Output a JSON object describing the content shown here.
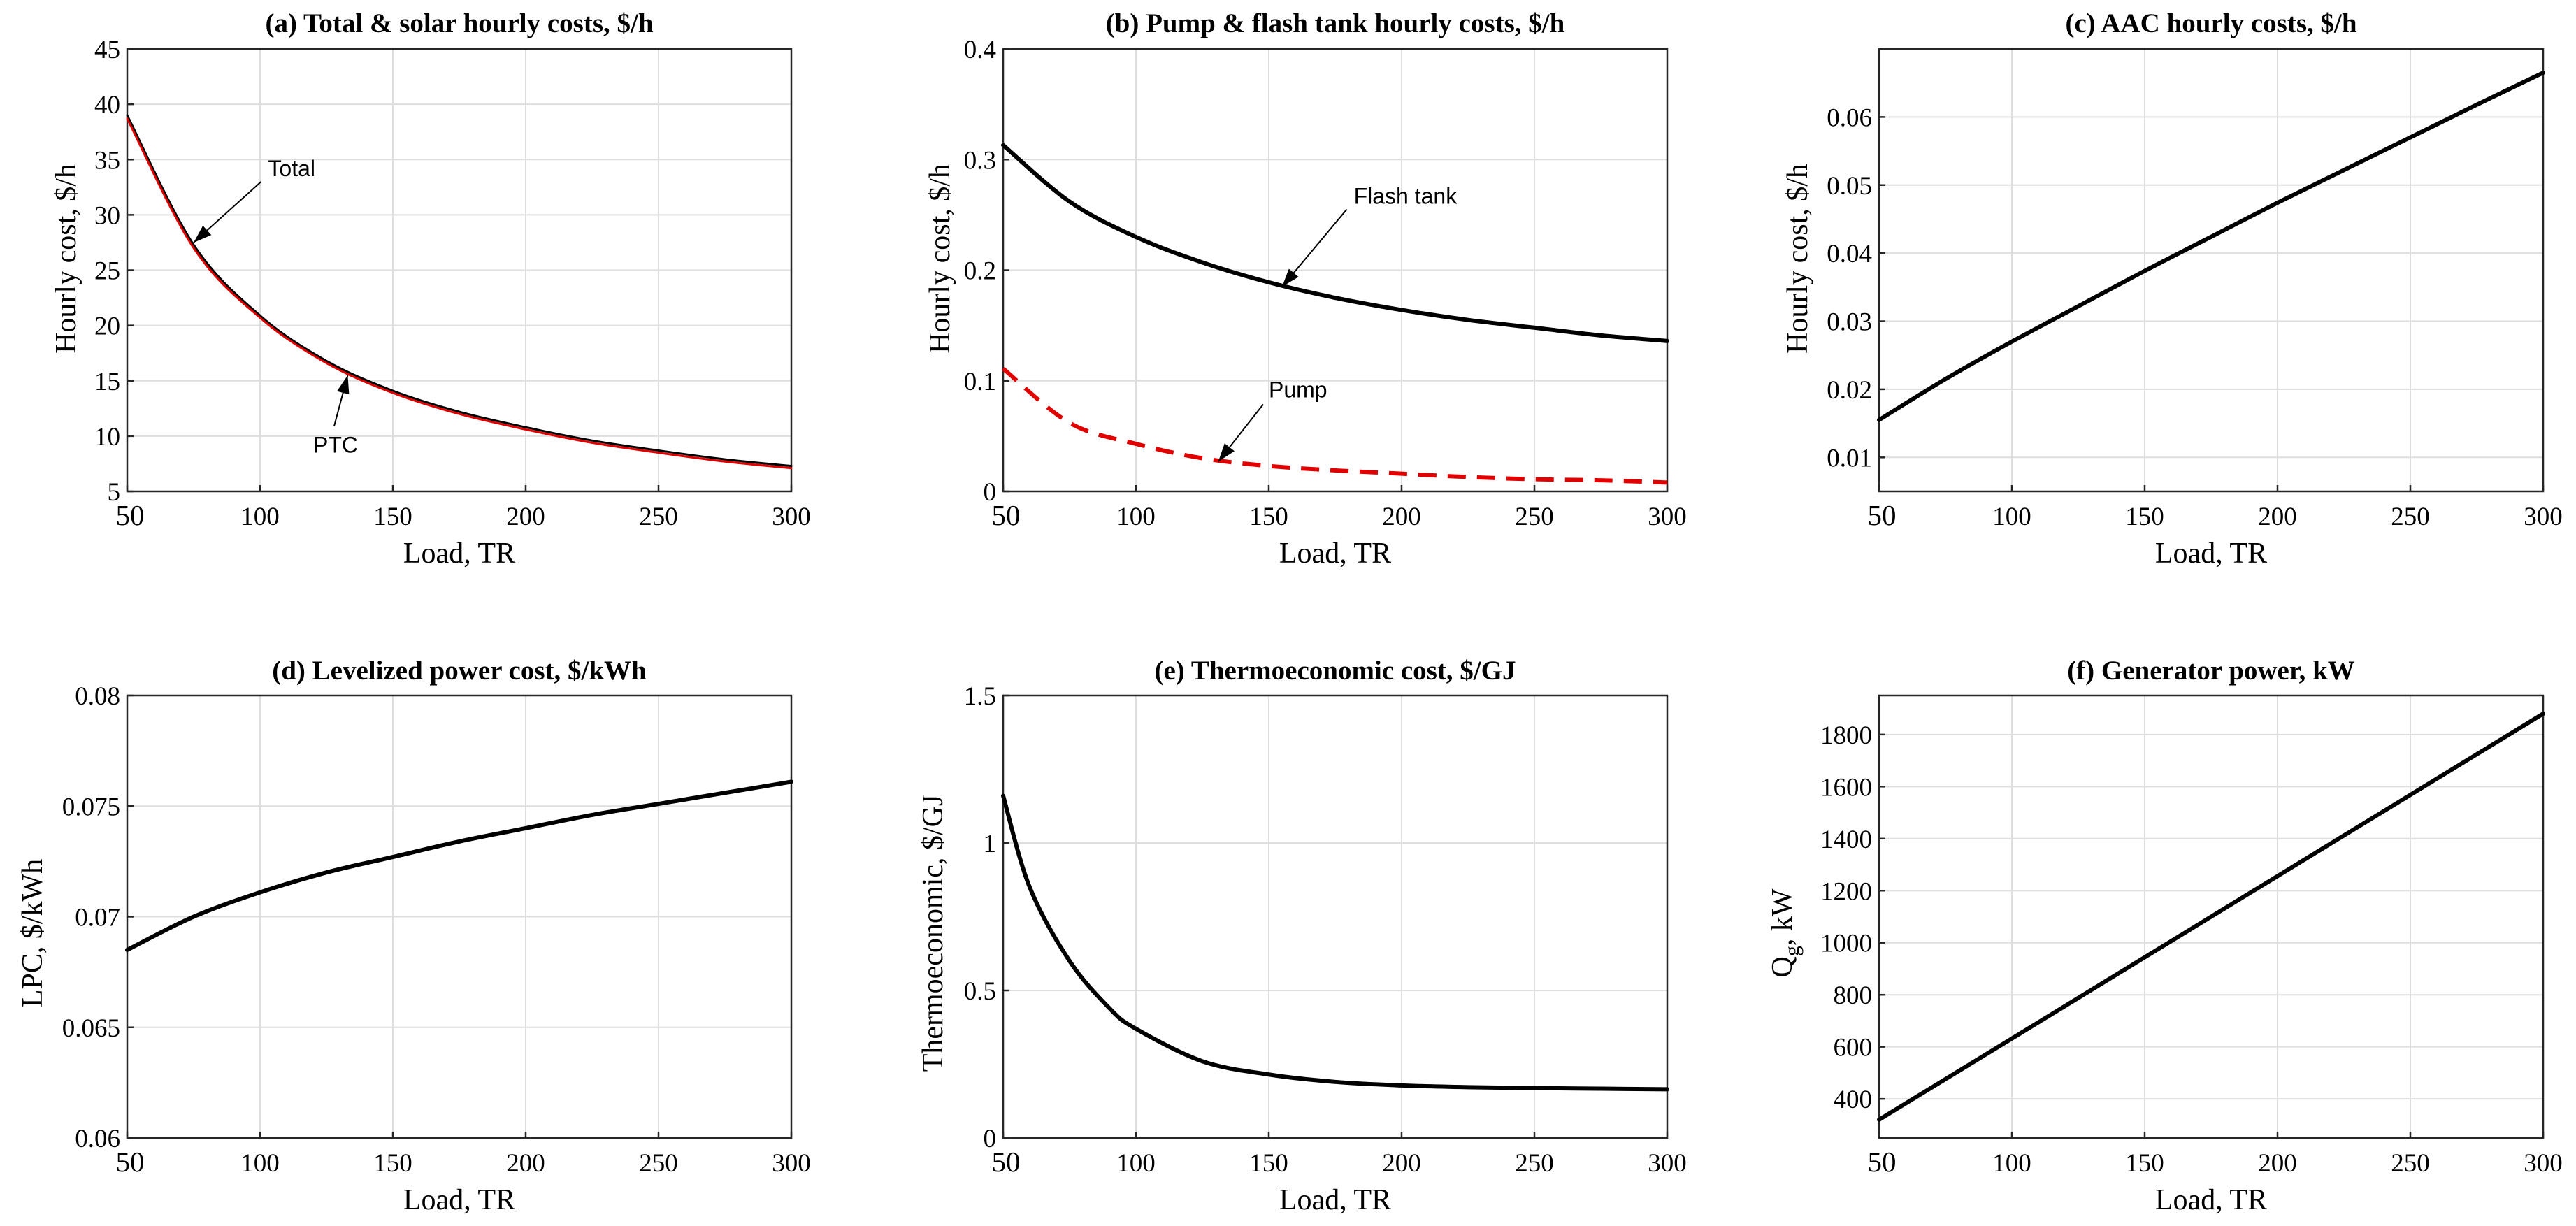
{
  "chart_data": [
    {
      "id": "a",
      "type": "line",
      "title": "(a) Total & solar hourly costs, $/h",
      "xlabel": "Load, TR",
      "ylabel": "Hourly cost, $/h",
      "xlim": [
        50,
        300
      ],
      "ylim": [
        5,
        45
      ],
      "xticks": [
        50,
        100,
        150,
        200,
        250,
        300
      ],
      "yticks": [
        5,
        10,
        15,
        20,
        25,
        30,
        35,
        40,
        45
      ],
      "grid": true,
      "x": [
        50,
        75,
        100,
        125,
        150,
        175,
        200,
        225,
        250,
        275,
        300
      ],
      "series": [
        {
          "name": "Total",
          "color": "#000000",
          "style": "solid",
          "values": [
            39.0,
            27.3,
            20.9,
            16.8,
            14.1,
            12.2,
            10.8,
            9.6,
            8.7,
            7.9,
            7.3
          ]
        },
        {
          "name": "PTC",
          "color": "#e00000",
          "style": "solid",
          "values": [
            38.7,
            27.0,
            20.7,
            16.6,
            13.9,
            12.0,
            10.6,
            9.4,
            8.5,
            7.7,
            7.1
          ]
        }
      ],
      "annotations": [
        {
          "text": "Total",
          "x": 75,
          "y": 27.5,
          "tx": 103,
          "ty": 33.5
        },
        {
          "text": "PTC",
          "x": 133,
          "y": 15.5,
          "tx": 120,
          "ty": 8.5
        }
      ]
    },
    {
      "id": "b",
      "type": "line",
      "title": "(b) Pump & flash tank hourly costs, $/h",
      "xlabel": "Load, TR",
      "ylabel": "Hourly cost, $/h",
      "xlim": [
        50,
        300
      ],
      "ylim": [
        0,
        0.4
      ],
      "xticks": [
        50,
        100,
        150,
        200,
        250,
        300
      ],
      "yticks": [
        0,
        0.1,
        0.2,
        0.3,
        0.4
      ],
      "grid": true,
      "x": [
        50,
        75,
        100,
        125,
        150,
        175,
        200,
        225,
        250,
        275,
        300
      ],
      "series": [
        {
          "name": "Flash tank",
          "color": "#000000",
          "style": "solid",
          "values": [
            0.313,
            0.262,
            0.23,
            0.207,
            0.189,
            0.175,
            0.164,
            0.155,
            0.148,
            0.141,
            0.136
          ]
        },
        {
          "name": "Pump",
          "color": "#e00000",
          "style": "dashed",
          "values": [
            0.111,
            0.062,
            0.043,
            0.03,
            0.023,
            0.019,
            0.016,
            0.013,
            0.011,
            0.01,
            0.008
          ]
        }
      ],
      "annotations": [
        {
          "text": "Flash tank",
          "x": 155,
          "y": 0.185,
          "tx": 182,
          "ty": 0.26
        },
        {
          "text": "Pump",
          "x": 131,
          "y": 0.027,
          "tx": 150,
          "ty": 0.085
        }
      ]
    },
    {
      "id": "c",
      "type": "line",
      "title": "(c) AAC hourly costs, $/h",
      "xlabel": "Load, TR",
      "ylabel": "Hourly cost, $/h",
      "xlim": [
        50,
        300
      ],
      "ylim": [
        0.005,
        0.07
      ],
      "xticks": [
        50,
        100,
        150,
        200,
        250,
        300
      ],
      "yticks": [
        0.01,
        0.02,
        0.03,
        0.04,
        0.05,
        0.06
      ],
      "grid": true,
      "x": [
        50,
        75,
        100,
        125,
        150,
        175,
        200,
        225,
        250,
        275,
        300
      ],
      "series": [
        {
          "name": "AAC",
          "color": "#000000",
          "style": "solid",
          "values": [
            0.0155,
            0.0215,
            0.027,
            0.0322,
            0.0374,
            0.0424,
            0.0474,
            0.0522,
            0.057,
            0.0618,
            0.0665
          ]
        }
      ],
      "annotations": []
    },
    {
      "id": "d",
      "type": "line",
      "title": "(d) Levelized power cost, $/kWh",
      "xlabel": "Load, TR",
      "ylabel": "LPC, $/kWh",
      "xlim": [
        50,
        300
      ],
      "ylim": [
        0.06,
        0.08
      ],
      "xticks": [
        50,
        100,
        150,
        200,
        250,
        300
      ],
      "yticks": [
        0.06,
        0.065,
        0.07,
        0.075,
        0.08
      ],
      "grid": true,
      "x": [
        50,
        75,
        100,
        125,
        150,
        175,
        200,
        225,
        250,
        275,
        300
      ],
      "series": [
        {
          "name": "LPC",
          "color": "#000000",
          "style": "solid",
          "values": [
            0.0685,
            0.07,
            0.0711,
            0.072,
            0.0727,
            0.0734,
            0.074,
            0.0746,
            0.0751,
            0.0756,
            0.0761
          ]
        }
      ],
      "annotations": []
    },
    {
      "id": "e",
      "type": "line",
      "title": "(e) Thermoeconomic cost, $/GJ",
      "xlabel": "Load, TR",
      "ylabel": "Thermoeconomic, $/GJ",
      "xlim": [
        50,
        300
      ],
      "ylim": [
        0,
        1.5
      ],
      "xticks": [
        50,
        100,
        150,
        200,
        250,
        300
      ],
      "yticks": [
        0,
        0.5,
        1,
        1.5
      ],
      "grid": true,
      "x": [
        50,
        60,
        75,
        90,
        100,
        125,
        150,
        175,
        200,
        225,
        250,
        275,
        300
      ],
      "series": [
        {
          "name": "Thermoeconomic",
          "color": "#000000",
          "style": "solid",
          "values": [
            1.16,
            0.85,
            0.6,
            0.44,
            0.37,
            0.26,
            0.215,
            0.19,
            0.178,
            0.172,
            0.169,
            0.167,
            0.165
          ]
        }
      ],
      "annotations": []
    },
    {
      "id": "f",
      "type": "line",
      "title": "(f) Generator power, kW",
      "xlabel": "Load, TR",
      "ylabel": "Q",
      "ylabel_sub": "g",
      "ylabel_suffix": ", kW",
      "xlim": [
        50,
        300
      ],
      "ylim": [
        250,
        1950
      ],
      "xticks": [
        50,
        100,
        150,
        200,
        250,
        300
      ],
      "yticks": [
        400,
        600,
        800,
        1000,
        1200,
        1400,
        1600,
        1800
      ],
      "grid": true,
      "x": [
        50,
        100,
        150,
        200,
        250,
        300
      ],
      "series": [
        {
          "name": "Generator power",
          "color": "#000000",
          "style": "solid",
          "values": [
            320,
            632,
            944,
            1256,
            1568,
            1880
          ]
        }
      ],
      "annotations": []
    }
  ]
}
